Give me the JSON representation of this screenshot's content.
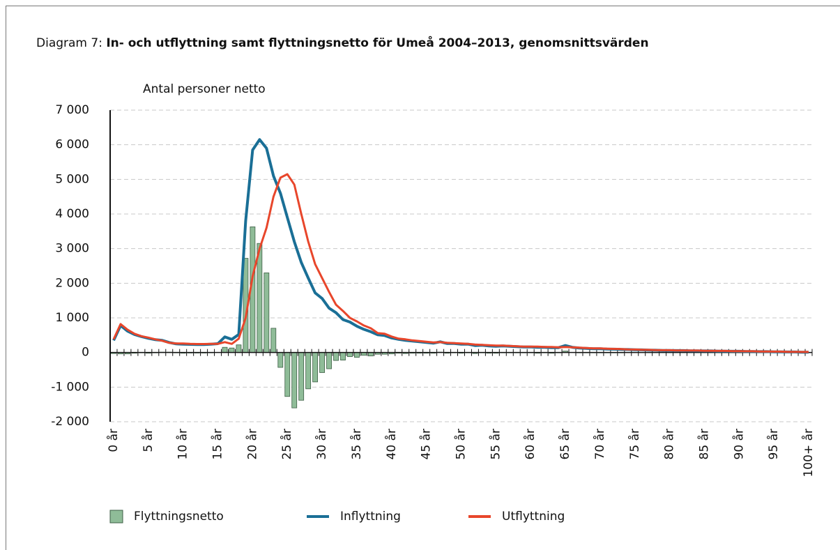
{
  "chart_data": {
    "type": "bar-line",
    "label": "Diagram 7:",
    "title": "In- och utflyttning samt flyttningsnetto för Umeå 2004–2013, genomsnittsvärden",
    "ylabel": "Antal personer netto",
    "categories": [
      "0 år",
      null,
      null,
      null,
      null,
      "5 år",
      null,
      null,
      null,
      null,
      "10 år",
      null,
      null,
      null,
      null,
      "15 år",
      null,
      null,
      null,
      null,
      "20 år",
      null,
      null,
      null,
      null,
      "25 år",
      null,
      null,
      null,
      null,
      "30 år",
      null,
      null,
      null,
      null,
      "35 år",
      null,
      null,
      null,
      null,
      "40 år",
      null,
      null,
      null,
      null,
      "45 år",
      null,
      null,
      null,
      null,
      "50 år",
      null,
      null,
      null,
      null,
      "55 år",
      null,
      null,
      null,
      null,
      "60 år",
      null,
      null,
      null,
      null,
      "65 år",
      null,
      null,
      null,
      null,
      "70 år",
      null,
      null,
      null,
      null,
      "75 år",
      null,
      null,
      null,
      null,
      "80 år",
      null,
      null,
      null,
      null,
      "85 år",
      null,
      null,
      null,
      null,
      "90 år",
      null,
      null,
      null,
      null,
      "95 år",
      null,
      null,
      null,
      null,
      "100+ år"
    ],
    "series": [
      {
        "name": "Flyttningsnetto",
        "type": "bar",
        "color": "#8fbc98",
        "values": [
          -30,
          -40,
          -40,
          -20,
          -10,
          -20,
          -10,
          10,
          10,
          -10,
          -20,
          -15,
          -15,
          -15,
          -10,
          5,
          150,
          130,
          220,
          2720,
          3630,
          3150,
          2300,
          700,
          -430,
          -1270,
          -1600,
          -1380,
          -1050,
          -850,
          -580,
          -470,
          -230,
          -220,
          -120,
          -140,
          -80,
          -100,
          -50,
          -50,
          -40,
          -20,
          -30,
          -20,
          -20,
          -20,
          -20,
          10,
          -20,
          -10,
          -20,
          -10,
          -30,
          -10,
          -20,
          -20,
          -10,
          -10,
          -10,
          -10,
          -10,
          -20,
          -10,
          -20,
          -10,
          40,
          0,
          -10,
          -10,
          -10,
          -10,
          -10,
          -10,
          -10,
          -5,
          -5,
          -5,
          -5,
          -5,
          -5,
          -5,
          -5,
          -5,
          -5,
          -5,
          -5,
          -5,
          -5,
          -5,
          -5,
          -5,
          -5,
          -5,
          -5,
          -5,
          -5,
          -5,
          -5,
          -5,
          -5,
          -5
        ]
      },
      {
        "name": "Inflyttning",
        "type": "line",
        "color": "#1a6f96",
        "values": [
          350,
          780,
          620,
          520,
          460,
          410,
          370,
          350,
          290,
          250,
          240,
          235,
          230,
          230,
          240,
          255,
          450,
          380,
          520,
          3800,
          5850,
          6150,
          5900,
          5100,
          4600,
          3900,
          3200,
          2600,
          2150,
          1720,
          1560,
          1280,
          1150,
          950,
          880,
          760,
          670,
          600,
          510,
          490,
          420,
          380,
          350,
          330,
          310,
          290,
          270,
          310,
          260,
          260,
          240,
          240,
          200,
          210,
          190,
          180,
          190,
          180,
          170,
          160,
          160,
          150,
          150,
          140,
          140,
          200,
          150,
          130,
          120,
          110,
          110,
          100,
          95,
          90,
          85,
          80,
          75,
          70,
          65,
          60,
          60,
          55,
          55,
          50,
          50,
          45,
          45,
          40,
          40,
          35,
          35,
          30,
          30,
          25,
          25,
          20,
          20,
          15,
          15,
          10,
          10
        ]
      },
      {
        "name": "Utflyttning",
        "type": "line",
        "color": "#e8462b",
        "values": [
          380,
          820,
          660,
          540,
          470,
          430,
          380,
          340,
          280,
          260,
          260,
          250,
          245,
          245,
          250,
          250,
          300,
          250,
          400,
          1000,
          2200,
          3000,
          3600,
          4500,
          5050,
          5150,
          4850,
          4000,
          3200,
          2550,
          2150,
          1750,
          1380,
          1200,
          1000,
          900,
          780,
          700,
          560,
          540,
          460,
          400,
          380,
          350,
          330,
          310,
          290,
          300,
          280,
          270,
          260,
          250,
          230,
          220,
          210,
          200,
          200,
          190,
          180,
          170,
          170,
          170,
          160,
          160,
          150,
          160,
          150,
          140,
          130,
          120,
          120,
          110,
          105,
          100,
          90,
          85,
          80,
          75,
          70,
          65,
          65,
          60,
          60,
          55,
          55,
          50,
          50,
          45,
          45,
          40,
          40,
          35,
          35,
          30,
          30,
          25,
          25,
          20,
          20,
          15,
          15
        ]
      }
    ],
    "ylim": [
      -2000,
      7000
    ],
    "yticks": [
      {
        "value": -2000,
        "label": "-2 000"
      },
      {
        "value": -1000,
        "label": "-1 000"
      },
      0,
      {
        "value": 1000,
        "label": "1 000"
      },
      {
        "value": 2000,
        "label": "2 000"
      },
      {
        "value": 3000,
        "label": "3 000"
      },
      {
        "value": 4000,
        "label": "4 000"
      },
      {
        "value": 5000,
        "label": "5 000"
      },
      {
        "value": 6000,
        "label": "6 000"
      },
      {
        "value": 7000,
        "label": "7 000"
      }
    ],
    "grid": true
  }
}
